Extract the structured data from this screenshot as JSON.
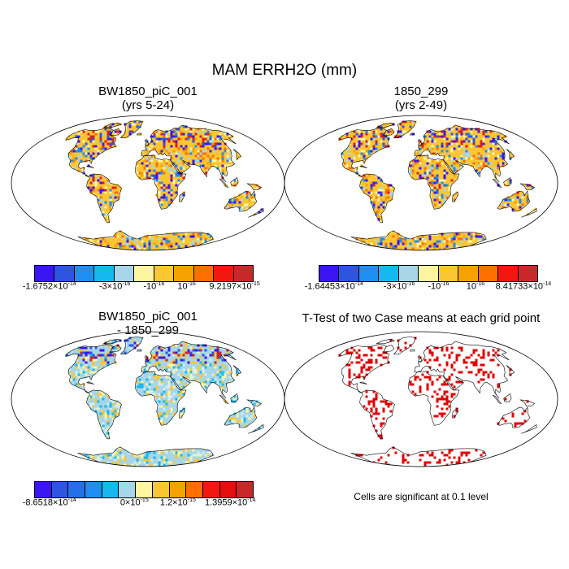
{
  "title": "MAM ERRH2O (mm)",
  "panels": {
    "p1": {
      "title_line1": "BW1850_piC_001",
      "title_line2": "(yrs 5-24)"
    },
    "p2": {
      "title_line1": "1850_299",
      "title_line2": "(yrs 2-49)"
    },
    "p3": {
      "title_line1": "BW1850_piC_001",
      "title_line2": "- 1850_299"
    },
    "p4": {
      "title_line1": "T-Test of two Case means at each grid point"
    }
  },
  "colorbars": {
    "cb1": {
      "colors": [
        "#3b16f0",
        "#2d55e0",
        "#1e8ef0",
        "#16b8f0",
        "#a6d6e8",
        "#fdf5a0",
        "#fbc633",
        "#f5a200",
        "#ff6f00",
        "#f2170f",
        "#c8282a"
      ],
      "labels": [
        {
          "mant": "-1.6752×10",
          "exp": "-14"
        },
        {
          "mant": "-3×10",
          "exp": "-16"
        },
        {
          "mant": "-10",
          "exp": "-16"
        },
        {
          "mant": "10",
          "exp": "-16"
        },
        {
          "mant": "9.2197×10",
          "exp": "-15"
        }
      ]
    },
    "cb2": {
      "colors": [
        "#3b16f0",
        "#2d55e0",
        "#1e8ef0",
        "#16b8f0",
        "#a6d6e8",
        "#fdf5a0",
        "#fbc633",
        "#f5a200",
        "#ff6f00",
        "#f2170f",
        "#c8282a"
      ],
      "labels": [
        {
          "mant": "-1.64453×10",
          "exp": "-14"
        },
        {
          "mant": "-3×10",
          "exp": "-16"
        },
        {
          "mant": "-10",
          "exp": "-16"
        },
        {
          "mant": "10",
          "exp": "-16"
        },
        {
          "mant": "8.41733×10",
          "exp": "-14"
        }
      ]
    },
    "cb3": {
      "colors": [
        "#3b16f0",
        "#2d55e0",
        "#2371e8",
        "#1e8ef0",
        "#16b8f0",
        "#a6d6e8",
        "#fdf5a0",
        "#fbc633",
        "#f5a200",
        "#ff6f00",
        "#f2170f",
        "#e30f0f",
        "#c8282a"
      ],
      "labels": [
        {
          "mant": "-8.6518×10",
          "exp": "-14"
        },
        {
          "mant": "0×10",
          "exp": "-15"
        },
        {
          "mant": "1.2×10",
          "exp": "-15"
        },
        {
          "mant": "1.3959×10",
          "exp": "-14"
        }
      ]
    }
  },
  "note": "Cells are significant at 0.1 level",
  "map_palettes": {
    "p1": {
      "base": "#fbc633",
      "mix": [
        "#fdf5a0",
        "#f5a200",
        "#1e8ef0",
        "#3b16f0",
        "#ff6f00",
        "#a6d6e8"
      ],
      "high": [
        "#3b16f0",
        "#2d55e0",
        "#c8282a",
        "#f2170f",
        "#fdf5a0"
      ]
    },
    "p2": {
      "base": "#fbc633",
      "mix": [
        "#fdf5a0",
        "#f5a200",
        "#1e8ef0",
        "#3b16f0",
        "#ff6f00",
        "#a6d6e8"
      ],
      "high": [
        "#3b16f0",
        "#2d55e0",
        "#c8282a",
        "#f2170f",
        "#fdf5a0"
      ]
    },
    "p3": {
      "base": "#a6d6e8",
      "mix": [
        "#fdf5a0",
        "#d7edf3",
        "#fbc633",
        "#16b8f0"
      ],
      "high": [
        "#3b16f0",
        "#c8282a",
        "#fbc633",
        "#2d55e0"
      ]
    },
    "p4": {
      "base": "#ffffff",
      "mix": [
        "#e00000"
      ],
      "high": [
        "#e00000"
      ]
    }
  },
  "chart_data": [
    {
      "type": "heatmap",
      "title": "BW1850_piC_001 (yrs 5-24)",
      "variable": "MAM ERRH2O (mm)",
      "min_label": "-1.6752×10^-14",
      "max_label": "9.2197×10^-15",
      "contour_levels": [
        "-3×10^-16",
        "-10^-16",
        "10^-16"
      ]
    },
    {
      "type": "heatmap",
      "title": "1850_299 (yrs 2-49)",
      "variable": "MAM ERRH2O (mm)",
      "min_label": "-1.64453×10^-14",
      "max_label": "8.41733×10^-14",
      "contour_levels": [
        "-3×10^-16",
        "-10^-16",
        "10^-16"
      ]
    },
    {
      "type": "heatmap",
      "title": "BW1850_piC_001 - 1850_299",
      "variable": "MAM ERRH2O (mm)",
      "min_label": "-8.6518×10^-14",
      "max_label": "1.3959×10^-14",
      "contour_levels": [
        "0×10^-15",
        "1.2×10^-15"
      ]
    },
    {
      "type": "heatmap",
      "title": "T-Test of two Case means at each grid point",
      "note": "Cells are significant at 0.1 level"
    }
  ]
}
